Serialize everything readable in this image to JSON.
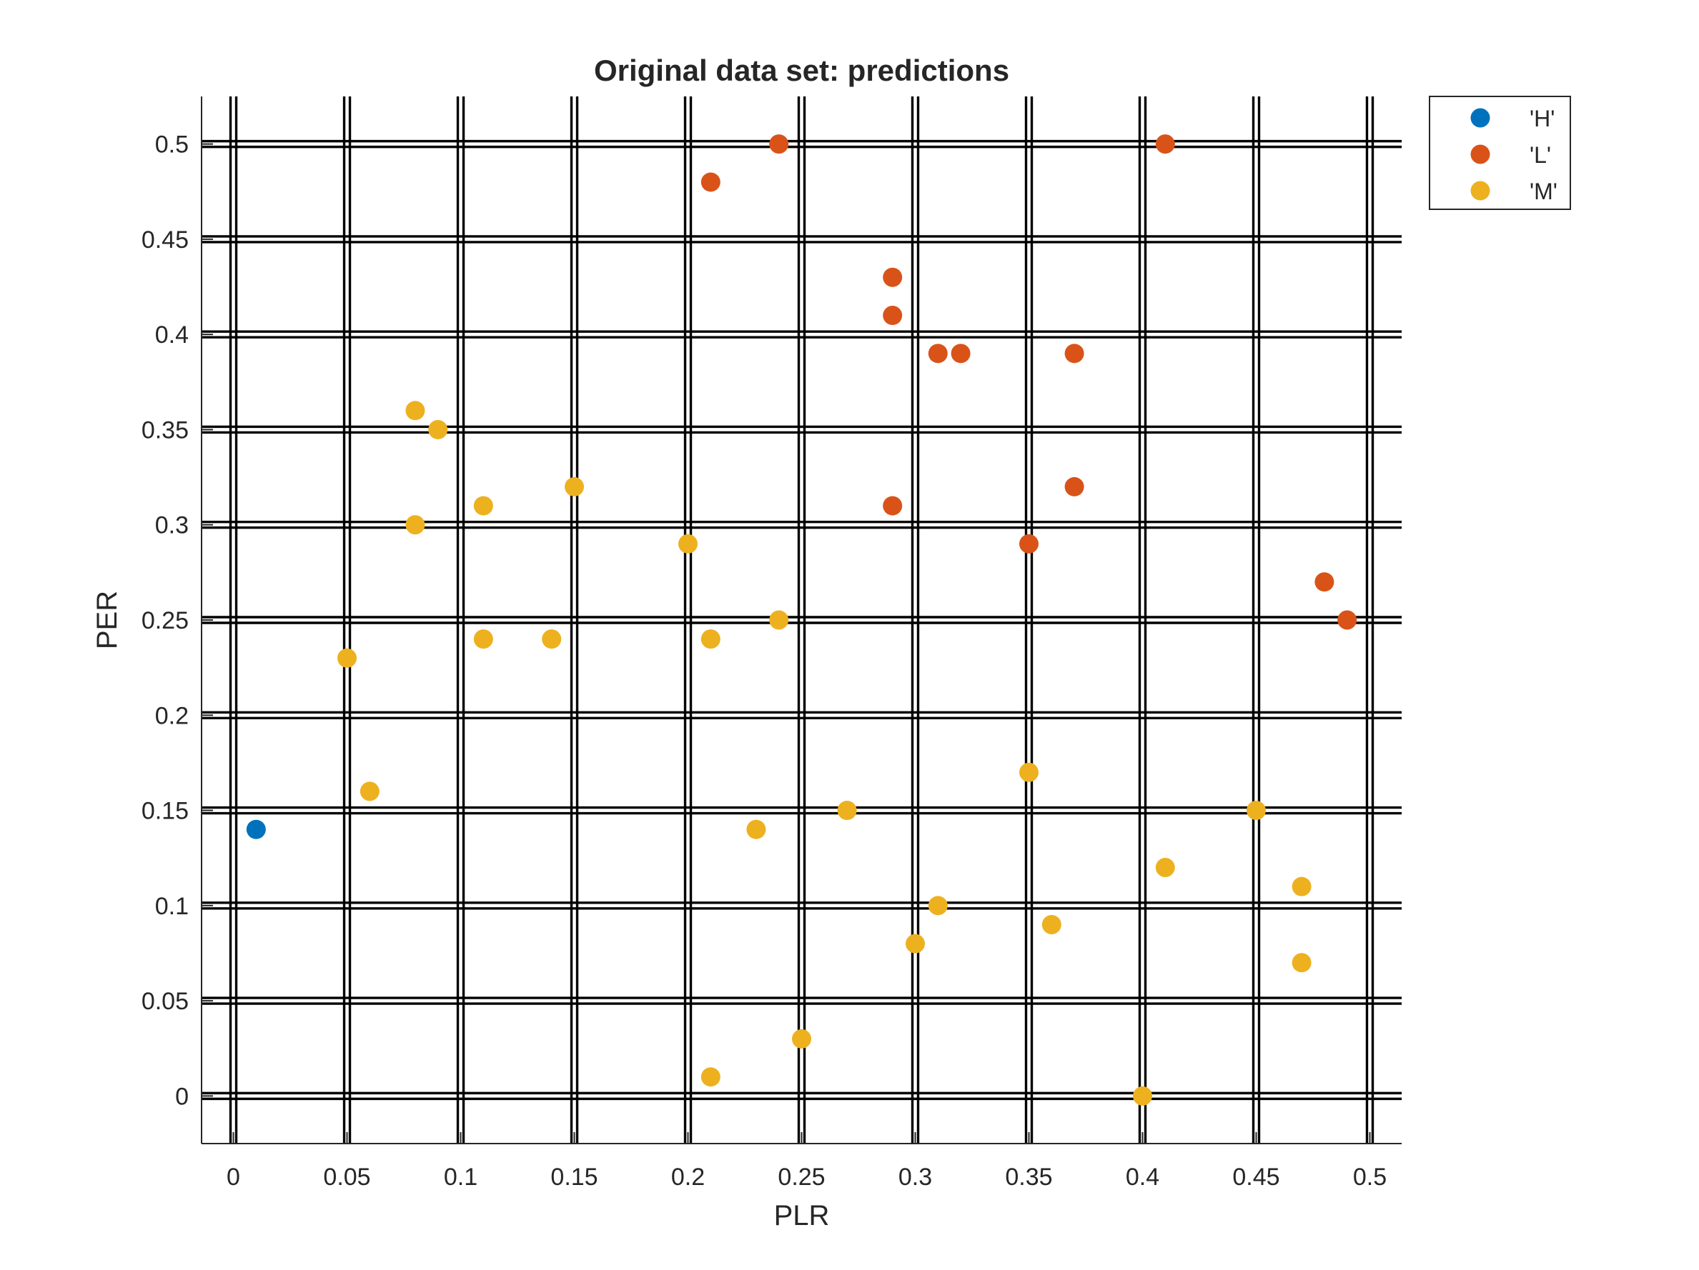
{
  "chart_data": {
    "type": "scatter",
    "title": "Original data set: predictions",
    "xlabel": "PLR",
    "ylabel": "PER",
    "xlim": [
      -0.014,
      0.514
    ],
    "ylim": [
      -0.025,
      0.525
    ],
    "xticks": [
      0,
      0.05,
      0.1,
      0.15,
      0.2,
      0.25,
      0.3,
      0.35,
      0.4,
      0.45,
      0.5
    ],
    "yticks": [
      0,
      0.05,
      0.1,
      0.15,
      0.2,
      0.25,
      0.3,
      0.35,
      0.4,
      0.45,
      0.5
    ],
    "grid": true,
    "legend_position": "outside-top-right",
    "series": [
      {
        "name": "'H'",
        "color": "#0072BD",
        "points": [
          [
            0.01,
            0.14
          ]
        ]
      },
      {
        "name": "'L'",
        "color": "#D95319",
        "points": [
          [
            0.24,
            0.5
          ],
          [
            0.41,
            0.5
          ],
          [
            0.21,
            0.48
          ],
          [
            0.29,
            0.43
          ],
          [
            0.29,
            0.41
          ],
          [
            0.31,
            0.39
          ],
          [
            0.32,
            0.39
          ],
          [
            0.37,
            0.39
          ],
          [
            0.37,
            0.32
          ],
          [
            0.29,
            0.31
          ],
          [
            0.35,
            0.29
          ],
          [
            0.48,
            0.27
          ],
          [
            0.49,
            0.25
          ]
        ]
      },
      {
        "name": "'M'",
        "color": "#EDB120",
        "points": [
          [
            0.08,
            0.36
          ],
          [
            0.09,
            0.35
          ],
          [
            0.15,
            0.32
          ],
          [
            0.11,
            0.31
          ],
          [
            0.08,
            0.3
          ],
          [
            0.2,
            0.29
          ],
          [
            0.24,
            0.25
          ],
          [
            0.11,
            0.24
          ],
          [
            0.14,
            0.24
          ],
          [
            0.21,
            0.24
          ],
          [
            0.05,
            0.23
          ],
          [
            0.35,
            0.17
          ],
          [
            0.06,
            0.16
          ],
          [
            0.27,
            0.15
          ],
          [
            0.45,
            0.15
          ],
          [
            0.23,
            0.14
          ],
          [
            0.41,
            0.12
          ],
          [
            0.47,
            0.11
          ],
          [
            0.31,
            0.1
          ],
          [
            0.36,
            0.09
          ],
          [
            0.3,
            0.08
          ],
          [
            0.47,
            0.07
          ],
          [
            0.25,
            0.03
          ],
          [
            0.21,
            0.01
          ],
          [
            0.4,
            0.0
          ]
        ]
      }
    ]
  }
}
